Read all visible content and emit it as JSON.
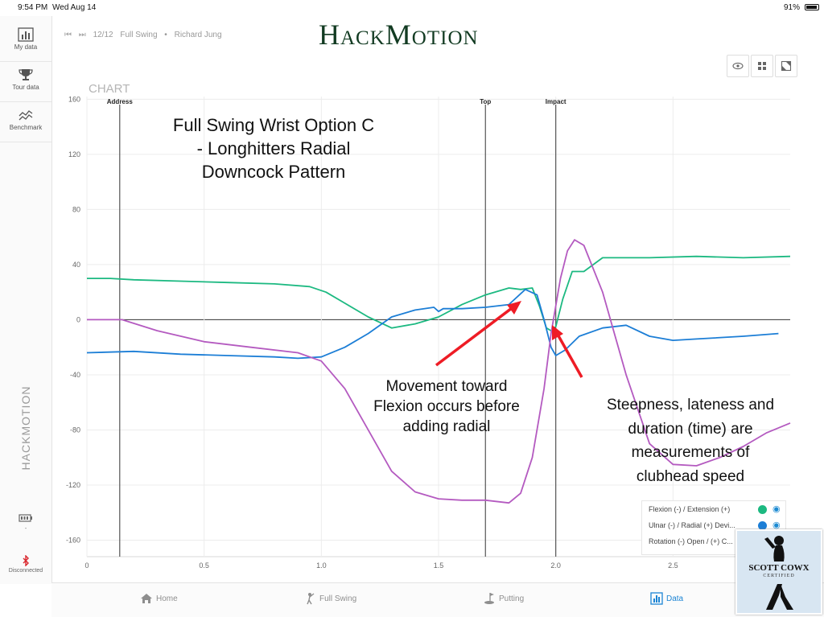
{
  "status_bar": {
    "time": "9:54 PM",
    "date": "Wed Aug 14",
    "battery": "91%"
  },
  "logo": "HackMotion",
  "sidebar": {
    "items": [
      {
        "label": "My data",
        "icon": "bar-chart-icon"
      },
      {
        "label": "Tour data",
        "icon": "trophy-icon"
      },
      {
        "label": "Benchmark",
        "icon": "benchmark-icon"
      }
    ],
    "brand": "HACKMOTION",
    "sensor": {
      "icon": "sensor-battery-icon",
      "label": "-"
    },
    "connection": {
      "icon": "bluetooth-icon",
      "label": "Disconnected"
    }
  },
  "nav": {
    "counter": "12/12",
    "mode": "Full Swing",
    "player": "Richard Jung"
  },
  "view_buttons": [
    "eye-icon",
    "grid-icon",
    "expand-icon"
  ],
  "annotations": {
    "title_lines": [
      "Full Swing Wrist Option C",
      "- Longhitters Radial",
      "Downcock Pattern"
    ],
    "note1_lines": [
      "Movement toward",
      "Flexion occurs before",
      "adding radial"
    ],
    "note2_lines": [
      "Steepness, lateness and",
      "duration (time) are",
      "measurements of",
      "clubhead speed"
    ]
  },
  "chart_data": {
    "type": "line",
    "title": "CHART",
    "x_ticks": [
      "0",
      "0.5",
      "1.0",
      "1.5",
      "2.0",
      "2.5"
    ],
    "y_ticks": [
      "160",
      "120",
      "80",
      "40",
      "0",
      "-40",
      "-80",
      "-120",
      "-160"
    ],
    "xlim": [
      0,
      3.0
    ],
    "ylim": [
      -172,
      162
    ],
    "markers": [
      {
        "label": "Address",
        "x": 0.14
      },
      {
        "label": "Top",
        "x": 1.7
      },
      {
        "label": "Impact",
        "x": 2.0
      }
    ],
    "series": [
      {
        "name": "Flexion (-) / Extension (+)",
        "color": "#1cb981",
        "points": [
          [
            0,
            30
          ],
          [
            0.1,
            30
          ],
          [
            0.2,
            29
          ],
          [
            0.4,
            28
          ],
          [
            0.6,
            27
          ],
          [
            0.8,
            26
          ],
          [
            0.95,
            24
          ],
          [
            1.02,
            20
          ],
          [
            1.1,
            12
          ],
          [
            1.2,
            2
          ],
          [
            1.3,
            -6
          ],
          [
            1.4,
            -3
          ],
          [
            1.5,
            2
          ],
          [
            1.6,
            11
          ],
          [
            1.7,
            18
          ],
          [
            1.8,
            23
          ],
          [
            1.85,
            22
          ],
          [
            1.9,
            23
          ],
          [
            1.93,
            10
          ],
          [
            1.96,
            -6
          ],
          [
            1.98,
            -8
          ],
          [
            2.0,
            -5
          ],
          [
            2.03,
            15
          ],
          [
            2.07,
            35
          ],
          [
            2.12,
            35
          ],
          [
            2.2,
            45
          ],
          [
            2.4,
            45
          ],
          [
            2.6,
            46
          ],
          [
            2.8,
            45
          ],
          [
            3.0,
            46
          ]
        ]
      },
      {
        "name": "Ulnar (-) / Radial (+) Devi...",
        "color": "#1c7ed6",
        "points": [
          [
            0,
            -24
          ],
          [
            0.2,
            -23
          ],
          [
            0.4,
            -25
          ],
          [
            0.6,
            -26
          ],
          [
            0.8,
            -27
          ],
          [
            0.9,
            -28
          ],
          [
            1.0,
            -27
          ],
          [
            1.1,
            -20
          ],
          [
            1.2,
            -10
          ],
          [
            1.3,
            2
          ],
          [
            1.4,
            7
          ],
          [
            1.48,
            9
          ],
          [
            1.5,
            6
          ],
          [
            1.52,
            8
          ],
          [
            1.6,
            8
          ],
          [
            1.7,
            9
          ],
          [
            1.8,
            11
          ],
          [
            1.87,
            22
          ],
          [
            1.92,
            18
          ],
          [
            1.95,
            0
          ],
          [
            1.98,
            -20
          ],
          [
            2.0,
            -26
          ],
          [
            2.04,
            -22
          ],
          [
            2.1,
            -12
          ],
          [
            2.2,
            -6
          ],
          [
            2.3,
            -4
          ],
          [
            2.4,
            -12
          ],
          [
            2.5,
            -15
          ],
          [
            2.6,
            -14
          ],
          [
            2.8,
            -12
          ],
          [
            2.95,
            -10
          ]
        ]
      },
      {
        "name": "Rotation (-) Open / (+) C...",
        "color": "#b45ac0",
        "points": [
          [
            0,
            0
          ],
          [
            0.15,
            0
          ],
          [
            0.3,
            -8
          ],
          [
            0.5,
            -16
          ],
          [
            0.7,
            -20
          ],
          [
            0.9,
            -24
          ],
          [
            1.0,
            -30
          ],
          [
            1.1,
            -50
          ],
          [
            1.2,
            -80
          ],
          [
            1.3,
            -110
          ],
          [
            1.4,
            -125
          ],
          [
            1.5,
            -130
          ],
          [
            1.6,
            -131
          ],
          [
            1.7,
            -131
          ],
          [
            1.8,
            -133
          ],
          [
            1.85,
            -126
          ],
          [
            1.9,
            -100
          ],
          [
            1.95,
            -50
          ],
          [
            1.98,
            -10
          ],
          [
            2.02,
            30
          ],
          [
            2.05,
            50
          ],
          [
            2.08,
            58
          ],
          [
            2.12,
            54
          ],
          [
            2.2,
            20
          ],
          [
            2.3,
            -40
          ],
          [
            2.4,
            -90
          ],
          [
            2.5,
            -105
          ],
          [
            2.6,
            -106
          ],
          [
            2.7,
            -100
          ],
          [
            2.8,
            -92
          ],
          [
            2.9,
            -82
          ],
          [
            3.0,
            -75
          ]
        ]
      }
    ]
  },
  "legend": [
    {
      "label": "Flexion (-) / Extension (+)",
      "color": "#1cb981"
    },
    {
      "label": "Ulnar (-) / Radial (+) Devi...",
      "color": "#1c7ed6"
    },
    {
      "label": "Rotation (-) Open / (+) C...",
      "color": "#b45ac0"
    }
  ],
  "tabs": [
    {
      "label": "Home",
      "icon": "home-icon"
    },
    {
      "label": "Full Swing",
      "icon": "golfer-icon"
    },
    {
      "label": "Putting",
      "icon": "putting-icon"
    },
    {
      "label": "Data",
      "icon": "data-icon",
      "active": true
    }
  ],
  "badge": {
    "title": "SCOTT COWX",
    "subtitle": "CERTIFIED"
  }
}
